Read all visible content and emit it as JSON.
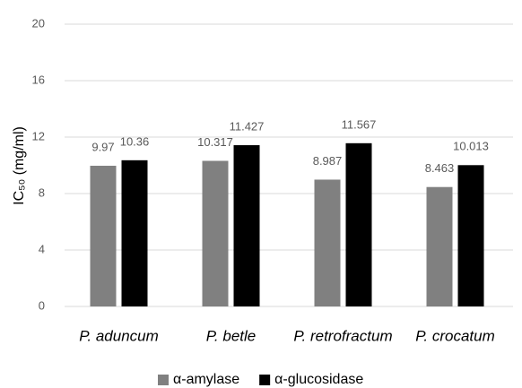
{
  "chart_data": {
    "type": "bar",
    "y_label": "IC₅₀ (mg/ml)",
    "categories": [
      "P. aduncum",
      "P. betle",
      "P. retrofractum",
      "P. crocatum"
    ],
    "series": [
      {
        "name": "α-amylase",
        "color": "#808080",
        "values": [
          9.97,
          10.317,
          8.987,
          8.463
        ]
      },
      {
        "name": "α-glucosidase",
        "color": "#000000",
        "values": [
          10.36,
          11.427,
          11.567,
          10.013
        ]
      }
    ],
    "ylim": [
      0,
      20
    ],
    "yticks": [
      0,
      4,
      8,
      12,
      16,
      20
    ],
    "grid": true,
    "legend": "bottom"
  }
}
